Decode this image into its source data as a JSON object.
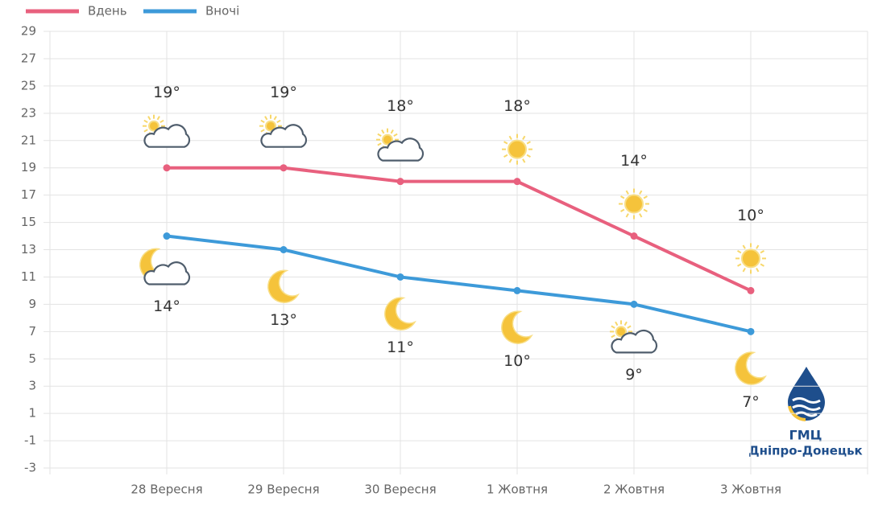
{
  "chart_data": {
    "type": "line",
    "categories": [
      "28 Вересня",
      "29 Вересня",
      "30 Вересня",
      "1 Жовтня",
      "2 Жовтня",
      "3 Жовтня"
    ],
    "series": [
      {
        "name": "Вдень",
        "color": "#e8607e",
        "values": [
          19,
          19,
          18,
          18,
          14,
          10
        ],
        "value_labels": [
          "19°",
          "19°",
          "18°",
          "18°",
          "14°",
          "10°"
        ]
      },
      {
        "name": "Вночі",
        "color": "#3d9ad9",
        "values": [
          14,
          13,
          11,
          10,
          9,
          7
        ],
        "value_labels": [
          "14°",
          "13°",
          "11°",
          "10°",
          "9°",
          "7°"
        ]
      }
    ],
    "ylim": [
      -3,
      29
    ],
    "yticks": [
      -3,
      -1,
      1,
      3,
      5,
      7,
      9,
      11,
      13,
      15,
      17,
      19,
      21,
      23,
      25,
      27,
      29
    ],
    "grid": true,
    "legend": "top-left"
  },
  "logo": {
    "line1": "ГМЦ",
    "line2": "Дніпро-Донецьк"
  }
}
